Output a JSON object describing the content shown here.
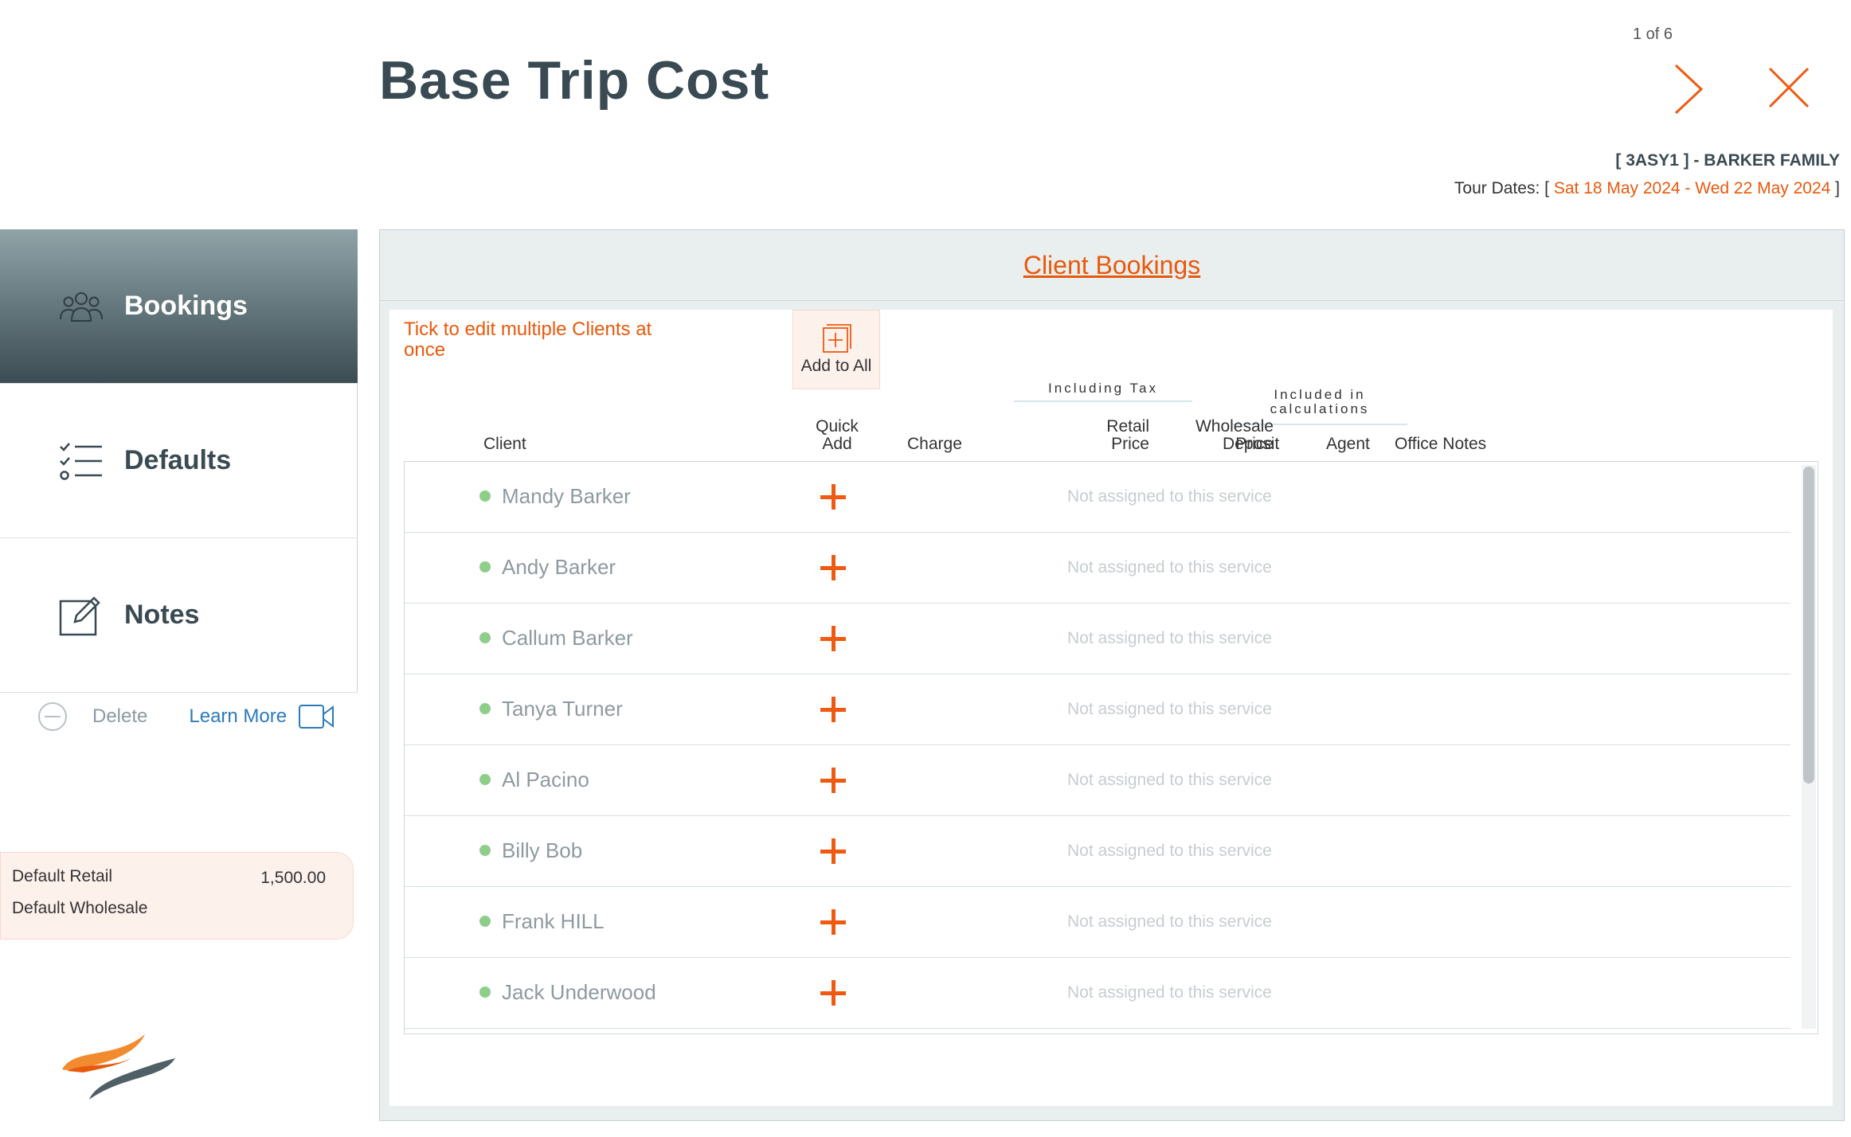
{
  "page": {
    "title": "Base Trip Cost",
    "pager": "1 of 6",
    "booking_ref": "[ 3ASY1 ] - BARKER FAMILY",
    "tour_dates_label": "Tour Dates: [",
    "tour_start": "Sat 18 May 2024",
    "tour_sep": " - ",
    "tour_end": "Wed 22 May 2024",
    "tour_close": " ]"
  },
  "icons": {
    "next": "chevron-right-icon",
    "close": "close-icon",
    "bookings": "users-icon",
    "defaults": "checklist-icon",
    "notes": "edit-note-icon",
    "delete": "minus-circle-icon",
    "learn_more": "video-camera-icon",
    "add_all": "add-box-icon",
    "quick_add": "plus-icon"
  },
  "sidebar": {
    "items": [
      {
        "label": "Bookings",
        "active": true
      },
      {
        "label": "Defaults",
        "active": false
      },
      {
        "label": "Notes",
        "active": false
      }
    ],
    "delete_label": "Delete",
    "learn_more_label": "Learn More"
  },
  "defaults_box": {
    "retail_label": "Default Retail",
    "retail_value": "1,500.00",
    "wholesale_label": "Default Wholesale"
  },
  "panel": {
    "title": "Client Bookings",
    "tick_note": "Tick to edit multiple Clients at once",
    "add_all_label": "Add to All",
    "group_including_tax": "Including Tax",
    "group_included_calc": "Included in calculations",
    "columns": {
      "client": "Client",
      "quick_add": "Quick Add",
      "charge": "Charge",
      "retail_price": "Retail Price",
      "wholesale_price": "Wholesale Price",
      "deposit": "Deposit",
      "agent": "Agent",
      "office_notes": "Office Notes"
    }
  },
  "clients": [
    {
      "name": "Mandy Barker",
      "status": "Not assigned to this service"
    },
    {
      "name": "Andy Barker",
      "status": "Not assigned to this service"
    },
    {
      "name": "Callum Barker",
      "status": "Not assigned to this service"
    },
    {
      "name": "Tanya Turner",
      "status": "Not assigned to this service"
    },
    {
      "name": "Al Pacino",
      "status": "Not assigned to this service"
    },
    {
      "name": "Billy Bob",
      "status": "Not assigned to this service"
    },
    {
      "name": "Frank HILL",
      "status": "Not assigned to this service"
    },
    {
      "name": "Jack Underwood",
      "status": "Not assigned to this service"
    }
  ],
  "colors": {
    "accent": "#e8590c",
    "title": "#3a4a52",
    "link": "#2b7bb9",
    "status_dot": "#8fce8a"
  }
}
